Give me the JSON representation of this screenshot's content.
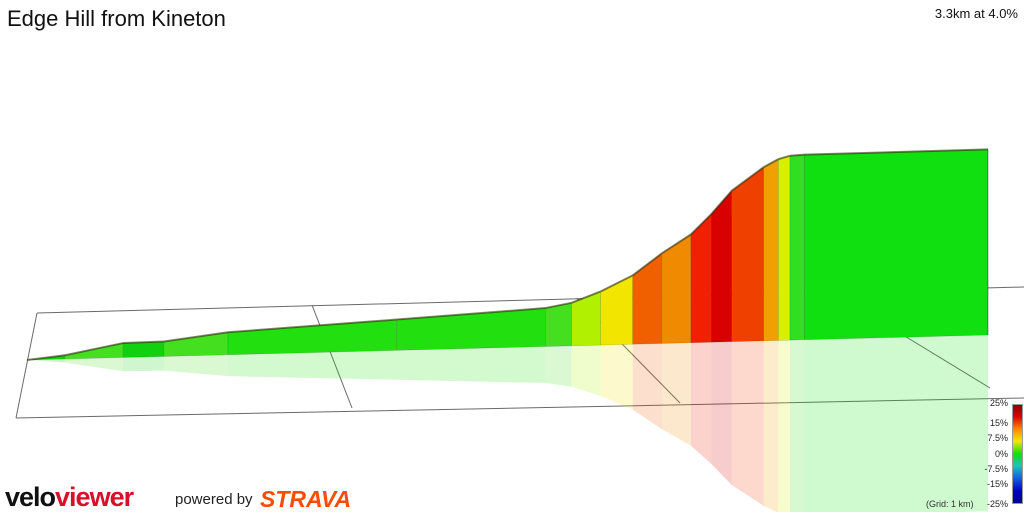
{
  "header": {
    "title": "Edge Hill from Kineton",
    "summary": "3.3km at 4.0%"
  },
  "legend": {
    "labels": [
      "25%",
      "15%",
      "7.5%",
      "0%",
      "-7.5%",
      "-15%",
      "-25%"
    ],
    "grid_note": "(Grid: 1 km)"
  },
  "branding": {
    "velo": "velo",
    "viewer": "viewer",
    "powered_by": "powered by",
    "strava": "STRAVA",
    "strava_color": "#fc4c02",
    "viewer_color": "#d8102a"
  },
  "chart_data": {
    "type": "area",
    "title": "Edge Hill from Kineton",
    "subtitle": "3.3km at 4.0%",
    "xlabel": "",
    "ylabel": "",
    "x_unit": "km",
    "y_unit": "m (relative)",
    "segments": [
      {
        "start_km": 0.0,
        "end_km": 0.13,
        "rise_m": 2.5,
        "grade_pct": 1.9,
        "color": "#10d010"
      },
      {
        "start_km": 0.13,
        "end_km": 0.33,
        "rise_m": 7.0,
        "grade_pct": 3.5,
        "color": "#44e020"
      },
      {
        "start_km": 0.33,
        "end_km": 0.47,
        "rise_m": 0.3,
        "grade_pct": 0.2,
        "color": "#10d010"
      },
      {
        "start_km": 0.47,
        "end_km": 0.69,
        "rise_m": 5.0,
        "grade_pct": 2.3,
        "color": "#44e020"
      },
      {
        "start_km": 0.69,
        "end_km": 1.27,
        "rise_m": 5.5,
        "grade_pct": 0.9,
        "color": "#22e010"
      },
      {
        "start_km": 1.27,
        "end_km": 1.78,
        "rise_m": 5.0,
        "grade_pct": 1.0,
        "color": "#22e010"
      },
      {
        "start_km": 1.78,
        "end_km": 1.87,
        "rise_m": 3.0,
        "grade_pct": 3.3,
        "color": "#44e020"
      },
      {
        "start_km": 1.87,
        "end_km": 1.97,
        "rise_m": 7.0,
        "grade_pct": 7.0,
        "color": "#b0f000"
      },
      {
        "start_km": 1.97,
        "end_km": 2.08,
        "rise_m": 10.0,
        "grade_pct": 9.1,
        "color": "#f2e600"
      },
      {
        "start_km": 2.08,
        "end_km": 2.18,
        "rise_m": 14.0,
        "grade_pct": 14.0,
        "color": "#f06000"
      },
      {
        "start_km": 2.18,
        "end_km": 2.28,
        "rise_m": 12.0,
        "grade_pct": 12.0,
        "color": "#f08a00"
      },
      {
        "start_km": 2.28,
        "end_km": 2.35,
        "rise_m": 13.0,
        "grade_pct": 18.6,
        "color": "#f02000"
      },
      {
        "start_km": 2.35,
        "end_km": 2.42,
        "rise_m": 15.0,
        "grade_pct": 21.4,
        "color": "#d80000"
      },
      {
        "start_km": 2.42,
        "end_km": 2.53,
        "rise_m": 15.0,
        "grade_pct": 13.6,
        "color": "#f04000"
      },
      {
        "start_km": 2.53,
        "end_km": 2.58,
        "rise_m": 5.0,
        "grade_pct": 10.0,
        "color": "#f0a000"
      },
      {
        "start_km": 2.58,
        "end_km": 2.62,
        "rise_m": 2.0,
        "grade_pct": 5.0,
        "color": "#d8f000"
      },
      {
        "start_km": 2.62,
        "end_km": 2.67,
        "rise_m": 0.5,
        "grade_pct": 1.0,
        "color": "#30e020"
      },
      {
        "start_km": 2.67,
        "end_km": 3.3,
        "rise_m": 0.3,
        "grade_pct": 0.0,
        "color": "#10e010"
      }
    ],
    "legend_range_pct": [
      -25,
      25
    ],
    "grid_km": 1,
    "legend_position": "bottom-right"
  }
}
